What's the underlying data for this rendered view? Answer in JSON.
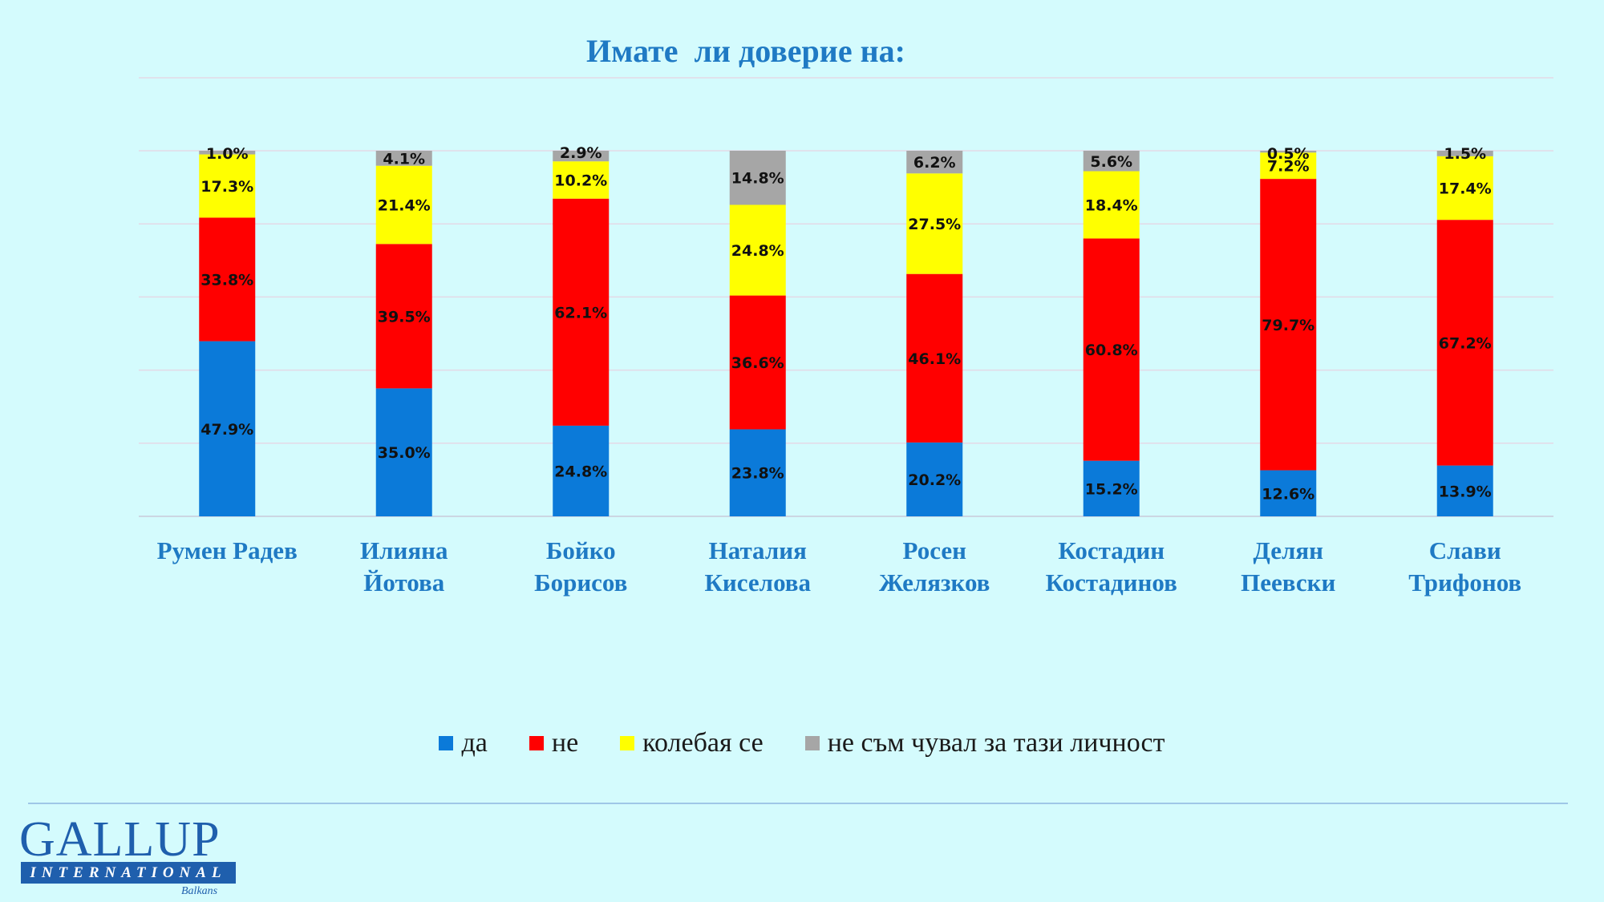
{
  "chart_data": {
    "type": "bar",
    "stacked": true,
    "title": "Имате  ли доверие на:",
    "categories": [
      "Румен Радев",
      "Илияна\nЙотова",
      "Бойко\nБорисов",
      "Наталия\nКиселова",
      "Росен\nЖелязков",
      "Костадин\nКостадинов",
      "Делян\nПеевски",
      "Слави\nТрифонов"
    ],
    "series": [
      {
        "name": "да",
        "color": "#0b7ad9",
        "values": [
          47.9,
          35.0,
          24.8,
          23.8,
          20.2,
          15.2,
          12.6,
          13.9
        ],
        "labels": [
          "47.9%",
          "35.0%",
          "24.8%",
          "23.8%",
          "20.2%",
          "15.2%",
          "12.6%",
          "13.9%"
        ]
      },
      {
        "name": "не",
        "color": "#ff0000",
        "values": [
          33.8,
          39.5,
          62.1,
          36.6,
          46.1,
          60.8,
          79.7,
          67.2
        ],
        "labels": [
          "33.8%",
          "39.5%",
          "62.1%",
          "36.6%",
          "46.1%",
          "60.8%",
          "79.7%",
          "67.2%"
        ]
      },
      {
        "name": "колебая се",
        "color": "#ffff00",
        "values": [
          17.3,
          21.4,
          10.2,
          24.8,
          27.5,
          18.4,
          7.2,
          17.4
        ],
        "labels": [
          "17.3%",
          "21.4%",
          "10.2%",
          "24.8%",
          "27.5%",
          "18.4%",
          "7.2%",
          "17.4%"
        ]
      },
      {
        "name": "не съм чувал за тази личност",
        "color": "#a6a6a6",
        "values": [
          1.0,
          4.1,
          2.9,
          14.8,
          6.2,
          5.6,
          0.5,
          1.5
        ],
        "labels": [
          "1.0%",
          "4.1%",
          "2.9%",
          "14.8%",
          "6.2%",
          "5.6%",
          "0.5%",
          "1.5%"
        ]
      }
    ],
    "ylim": [
      0,
      100
    ],
    "grid": true,
    "legend": "bottom"
  },
  "logo": {
    "name": "GALLUP",
    "band": "INTERNATIONAL",
    "sub": "Balkans"
  }
}
